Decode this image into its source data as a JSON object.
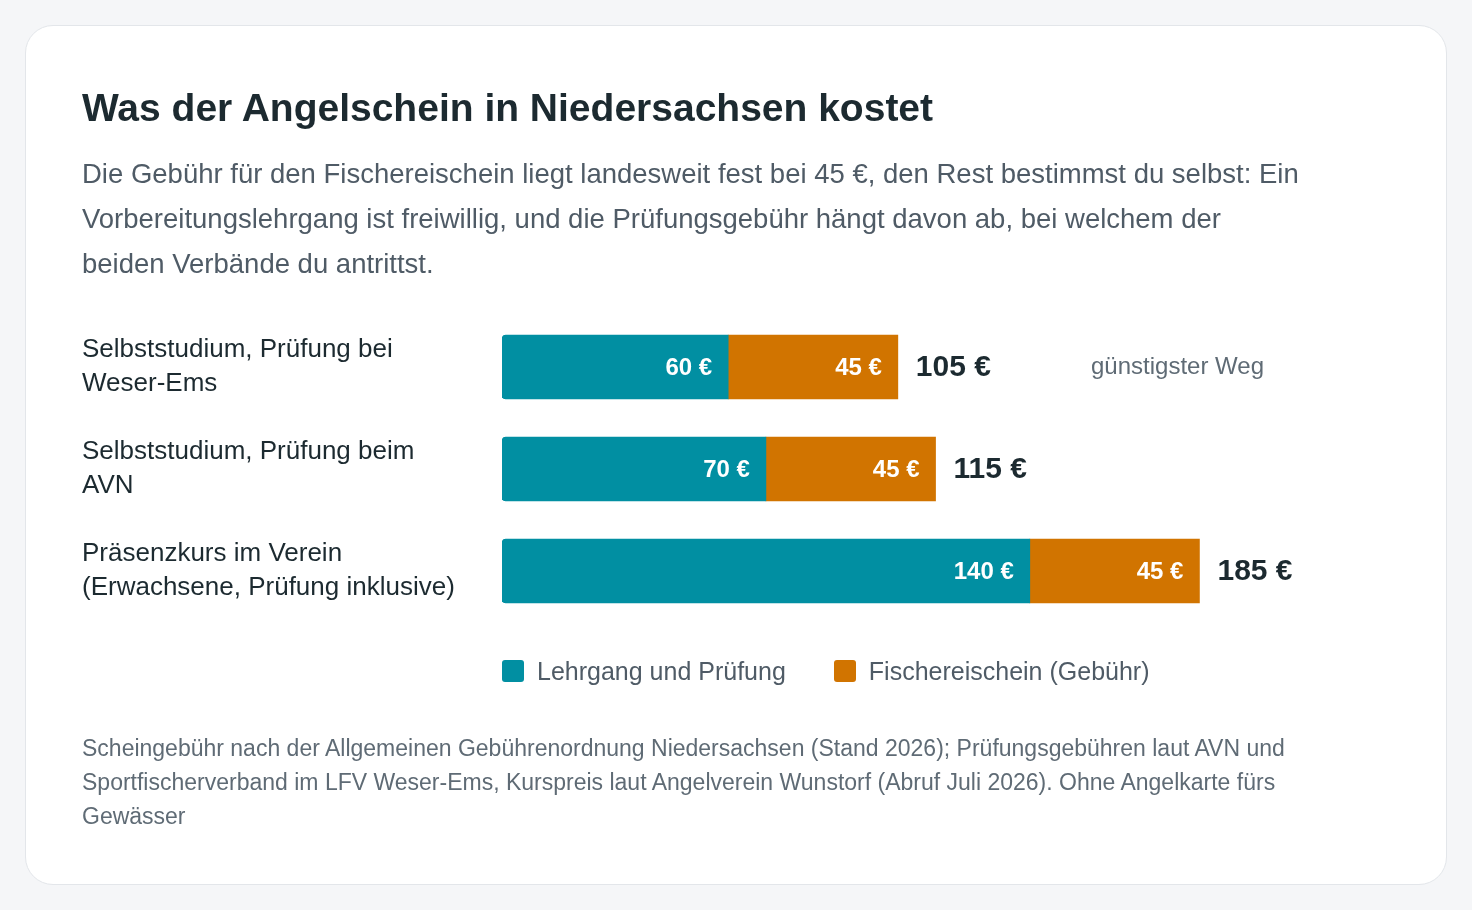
{
  "chart_data": {
    "type": "bar",
    "orientation": "horizontal",
    "stacked": true,
    "title": "Was der Angelschein in Niedersachsen kostet",
    "subtitle": "Die Gebühr für den Fischereischein liegt landesweit fest bei 45 €, den Rest bestimmst du selbst: Ein Vorbereitungslehrgang ist freiwillig, und die Prüfungsgebühr hängt davon ab, bei welchem der beiden Verbände du antrittst.",
    "categories": [
      "Selbststudium, Prüfung bei Weser-Ems",
      "Selbststudium, Prüfung beim AVN",
      "Präsenzkurs im Verein (Erwachsene, Prüfung inklusive)"
    ],
    "series": [
      {
        "name": "Lehrgang und Prüfung",
        "color": "#018fa2",
        "values": [
          60,
          70,
          140
        ],
        "value_labels": [
          "60 €",
          "70 €",
          "140 €"
        ]
      },
      {
        "name": "Fischereischein (Gebühr)",
        "color": "#d17400",
        "values": [
          45,
          45,
          45
        ],
        "value_labels": [
          "45 €",
          "45 €",
          "45 €"
        ]
      }
    ],
    "totals": [
      "105 €",
      "115 €",
      "185 €"
    ],
    "legend": "bottom",
    "annotations": [
      "günstigster Weg",
      "Scheingebühr nach der Allgemeinen Gebührenordnung Niedersachsen (Stand 2026); Prüfungsgebühren laut AVN und Sportfischerverband im LFV Weser-Ems, Kurspreis laut Angelverein Wunstorf (Abruf Juli 2026). Ohne Angelkarte fürs Gewässer"
    ]
  }
}
